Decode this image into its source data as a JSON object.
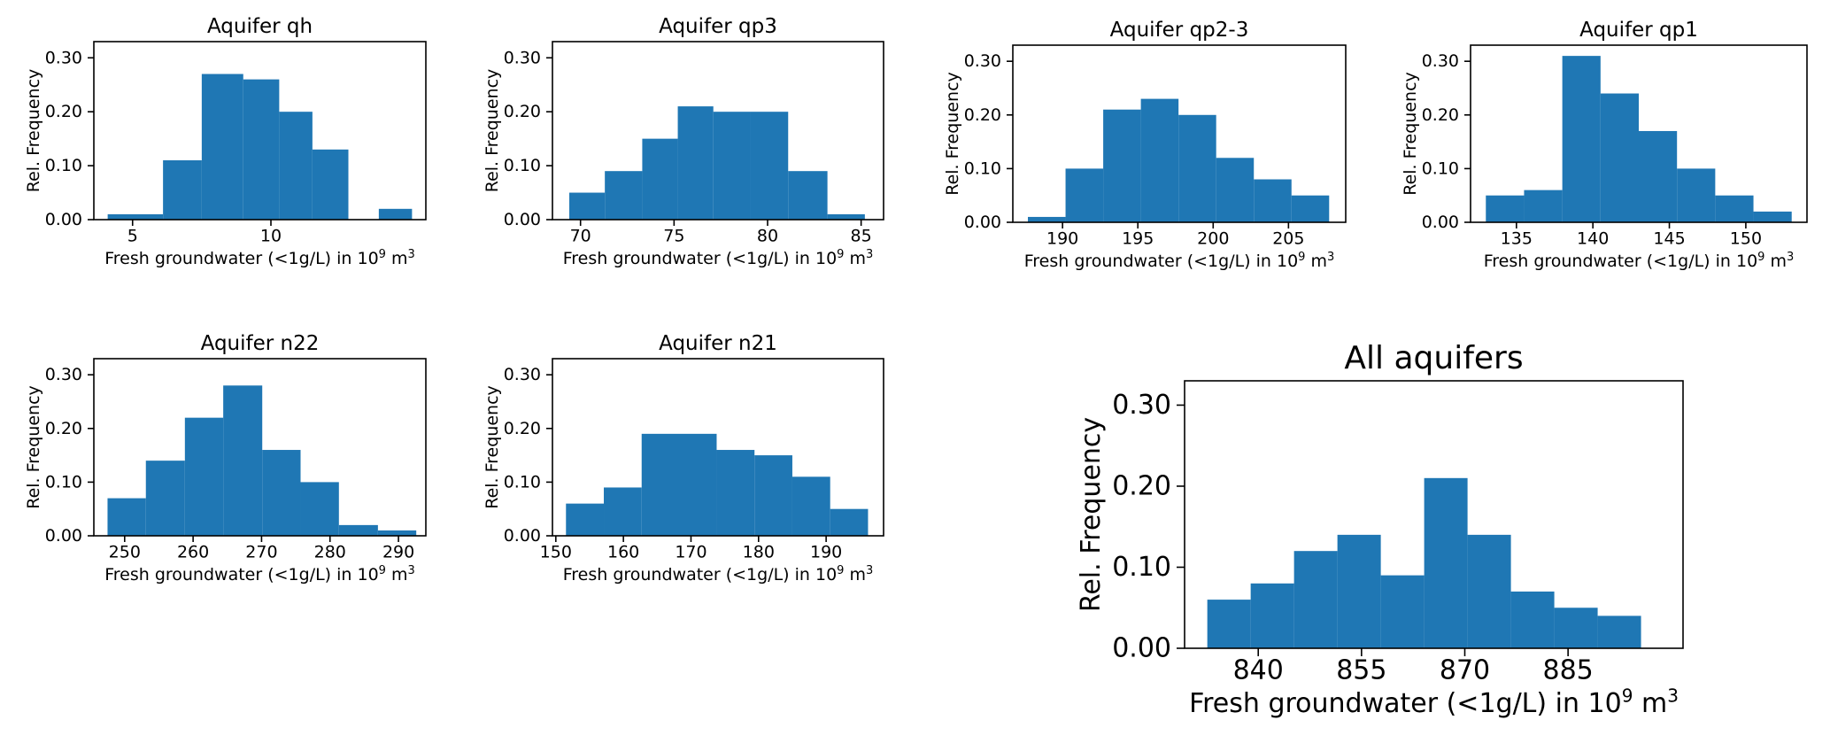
{
  "figure": {
    "bar_color": "#1f77b4",
    "axis_color": "#000000",
    "background": "#ffffff"
  },
  "chart_data": [
    {
      "type": "bar",
      "title": "Aquifer qh",
      "xlabel": "Fresh groundwater (<1g/L) in 10^9 m^3",
      "xlabel_parts": {
        "base": "Fresh groundwater (<1g/L) in 10",
        "exp1": "9",
        "mid": " m",
        "exp2": "3"
      },
      "ylabel": "Rel. Frequency",
      "xlim": [
        3.6,
        15.6
      ],
      "ylim": [
        0,
        0.33
      ],
      "xticks": [
        5,
        10
      ],
      "yticks": [
        0.0,
        0.1,
        0.2,
        0.3
      ],
      "ytick_labels": [
        "0.00",
        "0.10",
        "0.20",
        "0.30"
      ],
      "bin_edges": [
        4.1,
        6.1,
        7.5,
        9.0,
        10.3,
        11.5,
        12.8,
        13.9,
        15.1
      ],
      "values": [
        0.01,
        0.11,
        0.27,
        0.26,
        0.2,
        0.13,
        0.0,
        0.02
      ]
    },
    {
      "type": "bar",
      "title": "Aquifer qp3",
      "xlabel": "Fresh groundwater (<1g/L) in 10^9 m^3",
      "xlabel_parts": {
        "base": "Fresh groundwater (<1g/L) in 10",
        "exp1": "9",
        "mid": " m",
        "exp2": "3"
      },
      "ylabel": "Rel. Frequency",
      "xlim": [
        68.5,
        86.2
      ],
      "ylim": [
        0,
        0.33
      ],
      "xticks": [
        70,
        75,
        80,
        85
      ],
      "yticks": [
        0.0,
        0.1,
        0.2,
        0.3
      ],
      "ytick_labels": [
        "0.00",
        "0.10",
        "0.20",
        "0.30"
      ],
      "bin_edges": [
        69.4,
        71.3,
        73.3,
        75.2,
        77.1,
        79.1,
        81.1,
        83.2,
        85.2
      ],
      "values": [
        0.05,
        0.09,
        0.15,
        0.21,
        0.2,
        0.2,
        0.09,
        0.01
      ]
    },
    {
      "type": "bar",
      "title": "Aquifer qp2-3",
      "xlabel": "Fresh groundwater (<1g/L) in 10^9 m^3",
      "xlabel_parts": {
        "base": "Fresh groundwater (<1g/L) in 10",
        "exp1": "9",
        "mid": " m",
        "exp2": "3"
      },
      "ylabel": "Rel. Frequency",
      "xlim": [
        186.7,
        208.8
      ],
      "ylim": [
        0,
        0.33
      ],
      "xticks": [
        190,
        195,
        200,
        205
      ],
      "yticks": [
        0.0,
        0.1,
        0.2,
        0.3
      ],
      "ytick_labels": [
        "0.00",
        "0.10",
        "0.20",
        "0.30"
      ],
      "bin_edges": [
        187.7,
        190.2,
        192.7,
        195.2,
        197.7,
        200.2,
        202.7,
        205.2,
        207.7
      ],
      "values": [
        0.01,
        0.1,
        0.21,
        0.23,
        0.2,
        0.12,
        0.08,
        0.05
      ]
    },
    {
      "type": "bar",
      "title": "Aquifer qp1",
      "xlabel": "Fresh groundwater (<1g/L) in 10^9 m^3",
      "xlabel_parts": {
        "base": "Fresh groundwater (<1g/L) in 10",
        "exp1": "9",
        "mid": " m",
        "exp2": "3"
      },
      "ylabel": "Rel. Frequency",
      "xlim": [
        132.0,
        154.0
      ],
      "ylim": [
        0,
        0.33
      ],
      "xticks": [
        135,
        140,
        145,
        150
      ],
      "yticks": [
        0.0,
        0.1,
        0.2,
        0.3
      ],
      "ytick_labels": [
        "0.00",
        "0.10",
        "0.20",
        "0.30"
      ],
      "bin_edges": [
        133.0,
        135.5,
        138.0,
        140.5,
        143.0,
        145.5,
        148.0,
        150.5,
        153.0
      ],
      "values": [
        0.05,
        0.06,
        0.31,
        0.24,
        0.17,
        0.1,
        0.05,
        0.02
      ]
    },
    {
      "type": "bar",
      "title": "Aquifer n22",
      "xlabel": "Fresh groundwater (<1g/L) in 10^9 m^3",
      "xlabel_parts": {
        "base": "Fresh groundwater (<1g/L) in 10",
        "exp1": "9",
        "mid": " m",
        "exp2": "3"
      },
      "ylabel": "Rel. Frequency",
      "xlim": [
        245.5,
        294.0
      ],
      "ylim": [
        0,
        0.33
      ],
      "xticks": [
        250,
        260,
        270,
        280,
        290
      ],
      "yticks": [
        0.0,
        0.1,
        0.2,
        0.3
      ],
      "ytick_labels": [
        "0.00",
        "0.10",
        "0.20",
        "0.30"
      ],
      "bin_edges": [
        247.5,
        253.1,
        258.8,
        264.4,
        270.1,
        275.7,
        281.3,
        287.0,
        292.6
      ],
      "values": [
        0.07,
        0.14,
        0.22,
        0.28,
        0.16,
        0.1,
        0.02,
        0.01
      ]
    },
    {
      "type": "bar",
      "title": "Aquifer n21",
      "xlabel": "Fresh groundwater (<1g/L) in 10^9 m^3",
      "xlabel_parts": {
        "base": "Fresh groundwater (<1g/L) in 10",
        "exp1": "9",
        "mid": " m",
        "exp2": "3"
      },
      "ylabel": "Rel. Frequency",
      "xlim": [
        149.5,
        198.5
      ],
      "ylim": [
        0,
        0.33
      ],
      "xticks": [
        150,
        160,
        170,
        180,
        190
      ],
      "yticks": [
        0.0,
        0.1,
        0.2,
        0.3
      ],
      "ytick_labels": [
        "0.00",
        "0.10",
        "0.20",
        "0.30"
      ],
      "bin_edges": [
        151.5,
        157.1,
        162.7,
        168.3,
        173.8,
        179.4,
        185.0,
        190.6,
        196.2
      ],
      "values": [
        0.06,
        0.09,
        0.19,
        0.19,
        0.16,
        0.15,
        0.11,
        0.05
      ]
    },
    {
      "type": "bar",
      "title": "All aquifers",
      "xlabel": "Fresh groundwater (<1g/L) in 10^9 m^3",
      "xlabel_parts": {
        "base": "Fresh groundwater (<1g/L) in 10",
        "exp1": "9",
        "mid": " m",
        "exp2": "3"
      },
      "ylabel": "Rel. Frequency",
      "xlim": [
        829.3,
        901.7
      ],
      "ylim": [
        0,
        0.33
      ],
      "xticks": [
        840,
        855,
        870,
        885
      ],
      "yticks": [
        0.0,
        0.1,
        0.2,
        0.3
      ],
      "ytick_labels": [
        "0.00",
        "0.10",
        "0.20",
        "0.30"
      ],
      "bin_edges": [
        832.6,
        838.9,
        845.2,
        851.5,
        857.8,
        864.1,
        870.4,
        876.7,
        883.0,
        889.3,
        895.6
      ],
      "values": [
        0.06,
        0.08,
        0.12,
        0.14,
        0.09,
        0.21,
        0.14,
        0.07,
        0.05,
        0.04
      ]
    }
  ]
}
